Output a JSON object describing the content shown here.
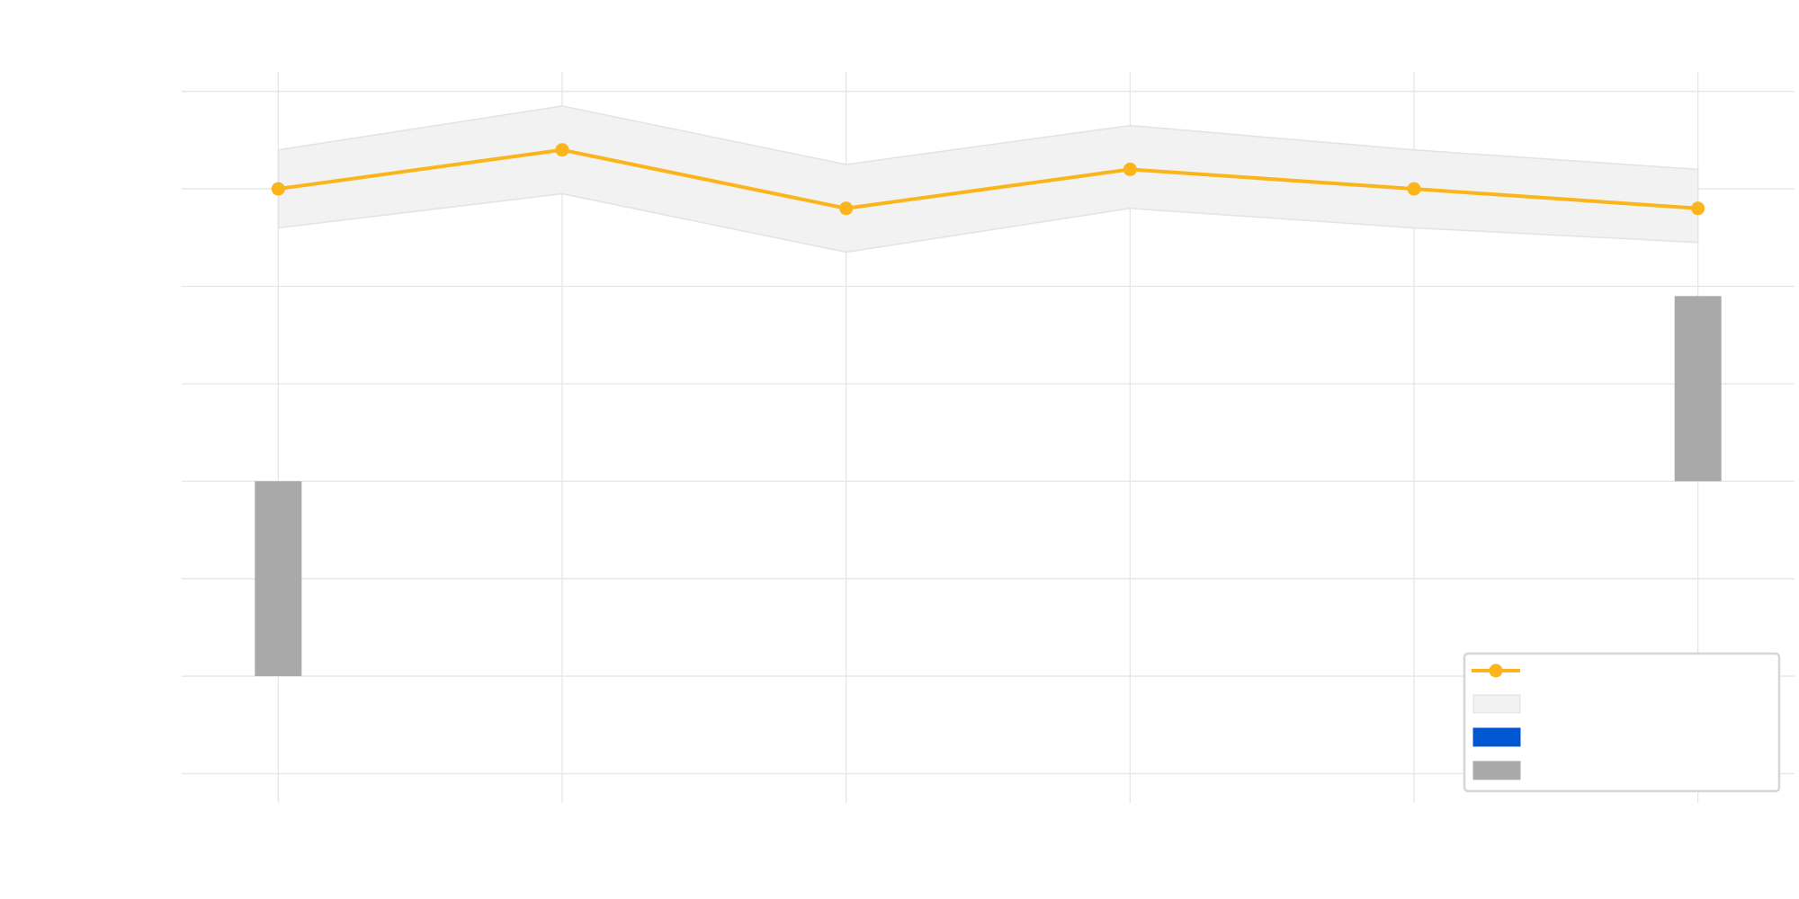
{
  "chart_data": {
    "type": "line",
    "title": "",
    "xlabel": "",
    "ylabel": "",
    "x": [
      1,
      2,
      3,
      4,
      5,
      6
    ],
    "xlim": [
      0.66,
      6.34
    ],
    "ylim": [
      -3.3,
      4.2
    ],
    "ytick_values": [
      -3,
      -2,
      -1,
      0,
      1,
      2,
      3,
      4
    ],
    "grid": true,
    "legend_position": "bottom-right",
    "line": {
      "values": [
        3,
        3.4,
        2.8,
        3.2,
        3,
        2.8
      ],
      "color": "#fbb41a"
    },
    "band": {
      "upper": [
        3.4,
        3.85,
        3.25,
        3.65,
        3.4,
        3.2
      ],
      "lower": [
        2.6,
        2.95,
        2.35,
        2.8,
        2.6,
        2.45
      ],
      "color": "#f2f2f2",
      "edge_color": "#e3e3e3"
    },
    "bars": {
      "values": [
        -2,
        0,
        0,
        0,
        0,
        1.9
      ],
      "base": 0,
      "color": "#a9a9a9"
    },
    "legend": {
      "entries": [
        {
          "symbol": "line-marker",
          "color": "#fbb41a",
          "label": ""
        },
        {
          "symbol": "patch",
          "color": "#f2f2f2",
          "label": ""
        },
        {
          "symbol": "patch",
          "color": "#0057d1",
          "label": ""
        },
        {
          "symbol": "patch",
          "color": "#a9a9a9",
          "label": ""
        }
      ]
    }
  }
}
